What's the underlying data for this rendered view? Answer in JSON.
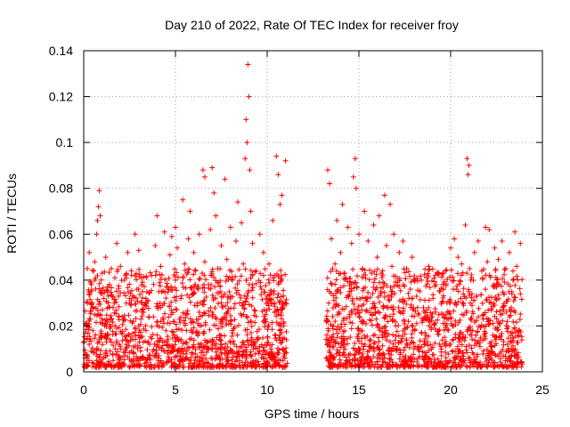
{
  "chart_data": {
    "type": "scatter",
    "title": "Day 210 of 2022, Rate Of TEC Index for receiver froy",
    "xlabel": "GPS time / hours",
    "ylabel": "ROTI / TECUs",
    "xlim": [
      0,
      25
    ],
    "ylim": [
      0,
      0.14
    ],
    "xticks": [
      0,
      5,
      10,
      15,
      20,
      25
    ],
    "xtick_labels": [
      "0",
      "5",
      "10",
      "15",
      "20",
      "25"
    ],
    "yticks": [
      0,
      0.02,
      0.04,
      0.06,
      0.08,
      0.1,
      0.12,
      0.14
    ],
    "ytick_labels": [
      "0",
      "0.02",
      "0.04",
      "0.06",
      "0.08",
      "0.1",
      "0.12",
      "0.14"
    ],
    "grid": true,
    "marker": "+",
    "color": "#ff0000",
    "series": [
      {
        "points": [
          [
            0.1,
            0.006
          ],
          [
            0.1,
            0.021
          ],
          [
            0.2,
            0.03
          ],
          [
            0.2,
            0.045
          ],
          [
            0.3,
            0.012
          ],
          [
            0.3,
            0.052
          ],
          [
            0.4,
            0.009
          ],
          [
            0.4,
            0.035
          ],
          [
            0.5,
            0.018
          ],
          [
            0.5,
            0.028
          ],
          [
            0.6,
            0.04
          ],
          [
            0.6,
            0.048
          ],
          [
            0.7,
            0.01
          ],
          [
            0.7,
            0.06
          ],
          [
            0.75,
            0.066
          ],
          [
            0.8,
            0.072
          ],
          [
            0.85,
            0.079
          ],
          [
            0.9,
            0.068
          ],
          [
            0.9,
            0.025
          ],
          [
            1.0,
            0.043
          ],
          [
            1.0,
            0.015
          ],
          [
            1.1,
            0.032
          ],
          [
            1.2,
            0.05
          ],
          [
            1.2,
            0.008
          ],
          [
            1.3,
            0.022
          ],
          [
            1.4,
            0.038
          ],
          [
            1.5,
            0.045
          ],
          [
            1.5,
            0.013
          ],
          [
            1.6,
            0.028
          ],
          [
            1.7,
            0.041
          ],
          [
            1.8,
            0.056
          ],
          [
            1.8,
            0.019
          ],
          [
            1.9,
            0.033
          ],
          [
            2.0,
            0.046
          ],
          [
            2.0,
            0.01
          ],
          [
            2.1,
            0.024
          ],
          [
            2.2,
            0.04
          ],
          [
            2.3,
            0.014
          ],
          [
            2.4,
            0.052
          ],
          [
            2.5,
            0.03
          ],
          [
            2.6,
            0.044
          ],
          [
            2.6,
            0.009
          ],
          [
            2.7,
            0.022
          ],
          [
            2.8,
            0.06
          ],
          [
            2.9,
            0.036
          ],
          [
            3.0,
            0.053
          ],
          [
            3.0,
            0.016
          ],
          [
            3.2,
            0.027
          ],
          [
            3.4,
            0.018
          ],
          [
            3.5,
            0.031
          ],
          [
            3.6,
            0.012
          ],
          [
            3.7,
            0.042
          ],
          [
            3.8,
            0.024
          ],
          [
            3.9,
            0.055
          ],
          [
            4.0,
            0.068
          ],
          [
            4.0,
            0.016
          ],
          [
            4.2,
            0.046
          ],
          [
            4.3,
            0.029
          ],
          [
            4.4,
            0.061
          ],
          [
            4.5,
            0.037
          ],
          [
            4.6,
            0.014
          ],
          [
            4.7,
            0.051
          ],
          [
            4.8,
            0.059
          ],
          [
            4.9,
            0.022
          ],
          [
            5.0,
            0.063
          ],
          [
            5.0,
            0.04
          ],
          [
            5.1,
            0.054
          ],
          [
            5.2,
            0.01
          ],
          [
            5.3,
            0.032
          ],
          [
            5.4,
            0.075
          ],
          [
            5.5,
            0.047
          ],
          [
            5.6,
            0.018
          ],
          [
            5.7,
            0.058
          ],
          [
            5.8,
            0.07
          ],
          [
            5.9,
            0.036
          ],
          [
            6.0,
            0.052
          ],
          [
            6.0,
            0.011
          ],
          [
            6.1,
            0.044
          ],
          [
            6.2,
            0.03
          ],
          [
            6.3,
            0.06
          ],
          [
            6.4,
            0.02
          ],
          [
            6.5,
            0.088
          ],
          [
            6.6,
            0.085
          ],
          [
            6.6,
            0.048
          ],
          [
            6.7,
            0.013
          ],
          [
            6.8,
            0.038
          ],
          [
            6.9,
            0.062
          ],
          [
            7.0,
            0.089
          ],
          [
            7.0,
            0.026
          ],
          [
            7.1,
            0.078
          ],
          [
            7.2,
            0.068
          ],
          [
            7.3,
            0.045
          ],
          [
            7.4,
            0.016
          ],
          [
            7.5,
            0.055
          ],
          [
            7.6,
            0.033
          ],
          [
            7.7,
            0.084
          ],
          [
            7.8,
            0.049
          ],
          [
            7.9,
            0.021
          ],
          [
            8.0,
            0.063
          ],
          [
            8.1,
            0.04
          ],
          [
            8.2,
            0.012
          ],
          [
            8.3,
            0.057
          ],
          [
            8.4,
            0.074
          ],
          [
            8.5,
            0.03
          ],
          [
            8.6,
            0.065
          ],
          [
            8.7,
            0.047
          ],
          [
            8.8,
            0.093
          ],
          [
            8.85,
            0.11
          ],
          [
            8.9,
            0.1
          ],
          [
            8.95,
            0.134
          ],
          [
            9.0,
            0.12
          ],
          [
            9.05,
            0.088
          ],
          [
            9.1,
            0.07
          ],
          [
            9.2,
            0.056
          ],
          [
            9.3,
            0.027
          ],
          [
            9.4,
            0.044
          ],
          [
            9.5,
            0.015
          ],
          [
            9.6,
            0.06
          ],
          [
            9.7,
            0.036
          ],
          [
            9.8,
            0.052
          ],
          [
            9.9,
            0.023
          ],
          [
            10.0,
            0.033
          ],
          [
            10.1,
            0.047
          ],
          [
            10.2,
            0.01
          ],
          [
            10.3,
            0.066
          ],
          [
            10.4,
            0.042
          ],
          [
            10.5,
            0.094
          ],
          [
            10.6,
            0.086
          ],
          [
            10.6,
            0.025
          ],
          [
            10.7,
            0.073
          ],
          [
            10.8,
            0.077
          ],
          [
            10.8,
            0.04
          ],
          [
            10.9,
            0.02
          ],
          [
            11.0,
            0.092
          ],
          [
            11.0,
            0.03
          ],
          [
            13.3,
            0.088
          ],
          [
            13.3,
            0.012
          ],
          [
            13.4,
            0.082
          ],
          [
            13.4,
            0.035
          ],
          [
            13.5,
            0.058
          ],
          [
            13.6,
            0.02
          ],
          [
            13.7,
            0.047
          ],
          [
            13.8,
            0.066
          ],
          [
            13.9,
            0.029
          ],
          [
            14.0,
            0.052
          ],
          [
            14.1,
            0.073
          ],
          [
            14.2,
            0.014
          ],
          [
            14.3,
            0.041
          ],
          [
            14.4,
            0.063
          ],
          [
            14.5,
            0.024
          ],
          [
            14.6,
            0.056
          ],
          [
            14.7,
            0.085
          ],
          [
            14.8,
            0.093
          ],
          [
            14.85,
            0.08
          ],
          [
            14.9,
            0.037
          ],
          [
            15.0,
            0.06
          ],
          [
            15.1,
            0.018
          ],
          [
            15.2,
            0.045
          ],
          [
            15.3,
            0.07
          ],
          [
            15.4,
            0.032
          ],
          [
            15.5,
            0.057
          ],
          [
            15.6,
            0.011
          ],
          [
            15.7,
            0.043
          ],
          [
            15.8,
            0.064
          ],
          [
            15.9,
            0.026
          ],
          [
            16.0,
            0.05
          ],
          [
            16.1,
            0.068
          ],
          [
            16.2,
            0.035
          ],
          [
            16.3,
            0.015
          ],
          [
            16.4,
            0.077
          ],
          [
            16.5,
            0.055
          ],
          [
            16.6,
            0.028
          ],
          [
            16.7,
            0.073
          ],
          [
            16.8,
            0.046
          ],
          [
            16.9,
            0.06
          ],
          [
            17.0,
            0.02
          ],
          [
            17.1,
            0.039
          ],
          [
            17.2,
            0.052
          ],
          [
            17.3,
            0.013
          ],
          [
            17.4,
            0.057
          ],
          [
            17.5,
            0.031
          ],
          [
            17.6,
            0.045
          ],
          [
            17.7,
            0.022
          ],
          [
            17.8,
            0.036
          ],
          [
            17.9,
            0.05
          ],
          [
            18.0,
            0.01
          ],
          [
            18.2,
            0.028
          ],
          [
            18.4,
            0.04
          ],
          [
            18.6,
            0.017
          ],
          [
            18.8,
            0.046
          ],
          [
            19.0,
            0.024
          ],
          [
            19.2,
            0.038
          ],
          [
            19.4,
            0.012
          ],
          [
            19.6,
            0.043
          ],
          [
            19.8,
            0.03
          ],
          [
            20.0,
            0.054
          ],
          [
            20.1,
            0.02
          ],
          [
            20.2,
            0.058
          ],
          [
            20.3,
            0.036
          ],
          [
            20.4,
            0.05
          ],
          [
            20.5,
            0.014
          ],
          [
            20.6,
            0.047
          ],
          [
            20.7,
            0.029
          ],
          [
            20.8,
            0.064
          ],
          [
            20.9,
            0.093
          ],
          [
            20.95,
            0.086
          ],
          [
            21.0,
            0.09
          ],
          [
            21.1,
            0.04
          ],
          [
            21.2,
            0.018
          ],
          [
            21.3,
            0.052
          ],
          [
            21.4,
            0.033
          ],
          [
            21.5,
            0.057
          ],
          [
            21.6,
            0.011
          ],
          [
            21.7,
            0.044
          ],
          [
            21.8,
            0.025
          ],
          [
            21.9,
            0.063
          ],
          [
            22.0,
            0.048
          ],
          [
            22.1,
            0.062
          ],
          [
            22.2,
            0.03
          ],
          [
            22.3,
            0.016
          ],
          [
            22.4,
            0.054
          ],
          [
            22.5,
            0.037
          ],
          [
            22.6,
            0.049
          ],
          [
            22.7,
            0.021
          ],
          [
            22.8,
            0.057
          ],
          [
            22.9,
            0.034
          ],
          [
            23.0,
            0.045
          ],
          [
            23.1,
            0.012
          ],
          [
            23.2,
            0.052
          ],
          [
            23.3,
            0.028
          ],
          [
            23.4,
            0.04
          ],
          [
            23.5,
            0.061
          ],
          [
            23.6,
            0.046
          ],
          [
            23.7,
            0.018
          ],
          [
            23.8,
            0.034
          ],
          [
            23.8,
            0.056
          ]
        ],
        "dense_band_hours": [
          [
            0.0,
            11.1
          ],
          [
            13.2,
            23.9
          ]
        ],
        "dense_band_roti": [
          0.002,
          0.045
        ]
      }
    ]
  }
}
